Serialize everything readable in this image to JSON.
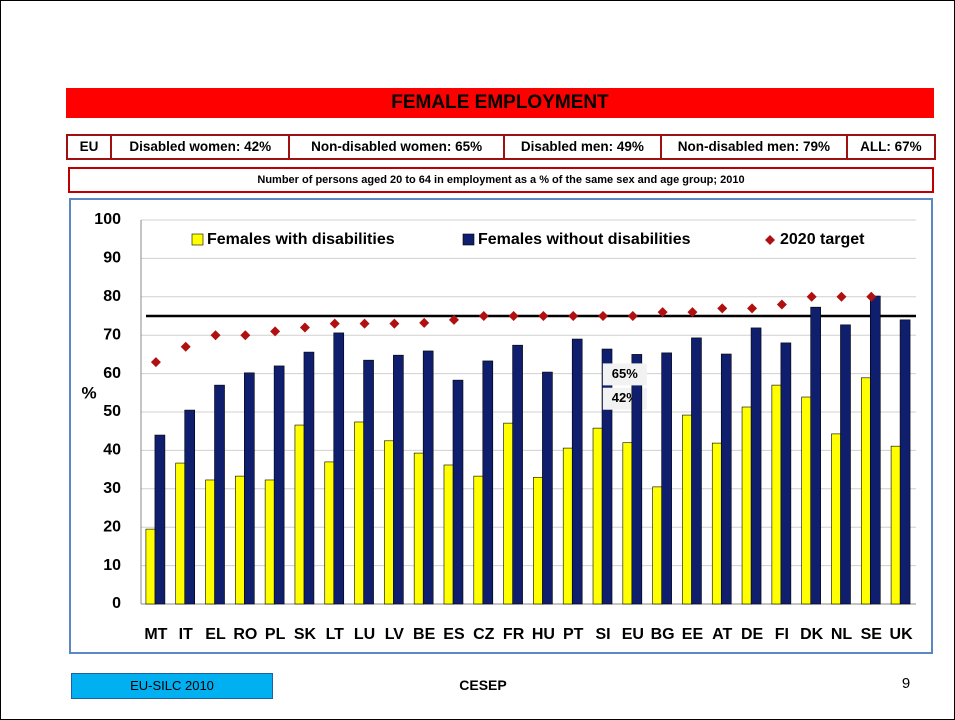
{
  "header": {
    "title": "FEMALE EMPLOYMENT"
  },
  "stats": [
    "EU",
    "Disabled women: 42%",
    "Non-disabled women: 65%",
    "Disabled men: 49%",
    "Non-disabled men: 79%",
    "ALL: 67%"
  ],
  "subtitle": "Number of persons aged 20 to 64 in employment as a % of the same sex and age group; 2010",
  "footer": {
    "source": "EU-SILC 2010",
    "org": "CESEP",
    "page": "9"
  },
  "chart_data": {
    "type": "bar",
    "ylabel": "%",
    "categories": [
      "MT",
      "IT",
      "EL",
      "RO",
      "PL",
      "SK",
      "LT",
      "LU",
      "LV",
      "BE",
      "ES",
      "CZ",
      "FR",
      "HU",
      "PT",
      "SI",
      "EU",
      "BG",
      "EE",
      "AT",
      "DE",
      "FI",
      "DK",
      "NL",
      "SE",
      "UK"
    ],
    "series": [
      {
        "name": "Females with disabilities",
        "color": "#ffff00",
        "values": [
          19.5,
          36.7,
          32.3,
          33.3,
          32.3,
          46.6,
          37,
          47.4,
          42.5,
          39.3,
          36.2,
          33.3,
          47.1,
          33,
          40.6,
          45.8,
          42,
          30.5,
          49.2,
          41.9,
          51.3,
          57,
          53.9,
          44.3,
          58.9,
          41.1
        ],
        "value_labels": [
          null,
          null,
          null,
          null,
          null,
          null,
          null,
          null,
          null,
          null,
          null,
          null,
          null,
          null,
          null,
          null,
          "42%",
          null,
          null,
          null,
          null,
          null,
          null,
          null,
          null,
          null
        ]
      },
      {
        "name": "Females without disabilities",
        "color": "#0f1f6e",
        "values": [
          44,
          50.5,
          57,
          60.2,
          62,
          65.6,
          70.6,
          63.5,
          64.8,
          65.9,
          58.3,
          63.3,
          67.4,
          60.4,
          69,
          66.4,
          65,
          65.4,
          69.3,
          65.1,
          71.9,
          68,
          77.3,
          72.7,
          80.2,
          74
        ],
        "value_labels": [
          null,
          null,
          null,
          null,
          null,
          null,
          null,
          null,
          null,
          null,
          null,
          null,
          null,
          null,
          null,
          null,
          "65%",
          null,
          null,
          null,
          null,
          null,
          null,
          null,
          null,
          null
        ]
      },
      {
        "name": "2020 target",
        "color": "#b01010",
        "marker": "diamond",
        "values": [
          63,
          67,
          70,
          70,
          71,
          72,
          73,
          73,
          73,
          73.2,
          74,
          75,
          75,
          75,
          75,
          75,
          75,
          76,
          76,
          77,
          77,
          78,
          80,
          80,
          80,
          null
        ]
      }
    ],
    "target_line": 75,
    "ylim": [
      0,
      100
    ],
    "yticks": [
      0,
      10,
      20,
      30,
      40,
      50,
      60,
      70,
      80,
      90,
      100
    ],
    "grid": true,
    "legend": "top"
  }
}
